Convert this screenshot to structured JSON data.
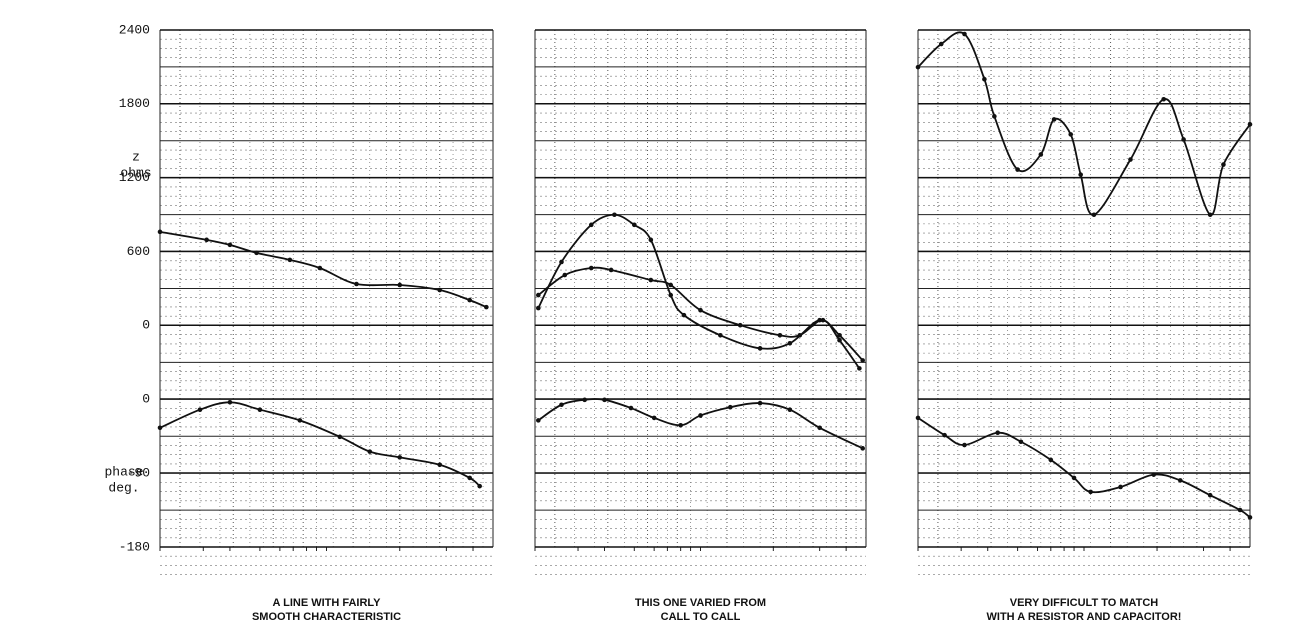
{
  "chart_data": [
    {
      "type": "line",
      "ylabel": [
        "z",
        "ohms"
      ],
      "y2label": [
        "phase",
        "deg."
      ],
      "caption": [
        "A LINE WITH FAIRLY",
        "SMOOTH CHARACTERISTIC"
      ],
      "ylim": [
        -600,
        2400
      ],
      "yticks": [
        0,
        600,
        1200,
        1800,
        2400
      ],
      "y2lim": [
        -180,
        0
      ],
      "y2ticks": [
        -180,
        -90,
        0
      ],
      "xlim": [
        0,
        100
      ],
      "grid": true,
      "series": [
        {
          "color": "#111",
          "x": [
            0,
            14,
            21,
            29,
            39,
            48,
            59,
            72,
            84,
            93,
            98
          ],
          "values": [
            759,
            694,
            653,
            588,
            531,
            465,
            335,
            327,
            286,
            204,
            147
          ]
        },
        {
          "color": "#111",
          "axis": "y2",
          "x": [
            0,
            12,
            21,
            30,
            42,
            54,
            63,
            72,
            84,
            93,
            96
          ],
          "values": [
            -35,
            -13,
            -4,
            -13,
            -26,
            -46,
            -64,
            -71,
            -80,
            -96,
            -106
          ]
        }
      ]
    },
    {
      "type": "line",
      "caption": [
        "THIS ONE VARIED FROM",
        "CALL TO CALL"
      ],
      "ylim": [
        -600,
        2400
      ],
      "y2lim": [
        -180,
        0
      ],
      "xlim": [
        0,
        100
      ],
      "series": [
        {
          "color": "#111",
          "x": [
            1,
            8,
            17,
            24,
            30,
            35,
            41,
            45,
            56,
            68,
            77,
            86,
            92,
            99
          ],
          "values": [
            139,
            514,
            816,
            898,
            816,
            694,
            245,
            82,
            -82,
            -188,
            -147,
            41,
            -82,
            -286
          ]
        },
        {
          "color": "#111",
          "x": [
            1,
            9,
            17,
            23,
            35,
            41,
            50,
            62,
            74,
            80,
            87,
            92,
            98
          ],
          "values": [
            245,
            408,
            465,
            449,
            367,
            327,
            122,
            0,
            -82,
            -82,
            41,
            -122,
            -351
          ]
        },
        {
          "color": "#111",
          "axis": "y2",
          "x": [
            1,
            8,
            15,
            21,
            29,
            36,
            44,
            50,
            59,
            68,
            77,
            86,
            99
          ],
          "values": [
            -26,
            -7,
            -1,
            -1,
            -11,
            -23,
            -32,
            -20,
            -10,
            -5,
            -13,
            -35,
            -60
          ]
        }
      ]
    },
    {
      "type": "line",
      "caption": [
        "VERY DIFFICULT TO MATCH",
        "WITH A RESISTOR AND CAPACITOR!"
      ],
      "ylim": [
        -600,
        2400
      ],
      "y2lim": [
        -180,
        0
      ],
      "xlim": [
        0,
        100
      ],
      "series": [
        {
          "color": "#111",
          "x": [
            0,
            7,
            14,
            20,
            23,
            30,
            37,
            41,
            46,
            49,
            53,
            64,
            74,
            80,
            88,
            92,
            100
          ],
          "values": [
            2098,
            2286,
            2367,
            2000,
            1698,
            1265,
            1388,
            1673,
            1551,
            1224,
            898,
            1347,
            1837,
            1510,
            898,
            1306,
            1633
          ]
        },
        {
          "color": "#111",
          "axis": "y2",
          "x": [
            0,
            8,
            14,
            24,
            31,
            40,
            47,
            52,
            61,
            71,
            79,
            88,
            97,
            100
          ],
          "values": [
            -23,
            -44,
            -56,
            -41,
            -52,
            -74,
            -96,
            -113,
            -107,
            -92,
            -99,
            -117,
            -135,
            -144
          ]
        }
      ]
    }
  ]
}
